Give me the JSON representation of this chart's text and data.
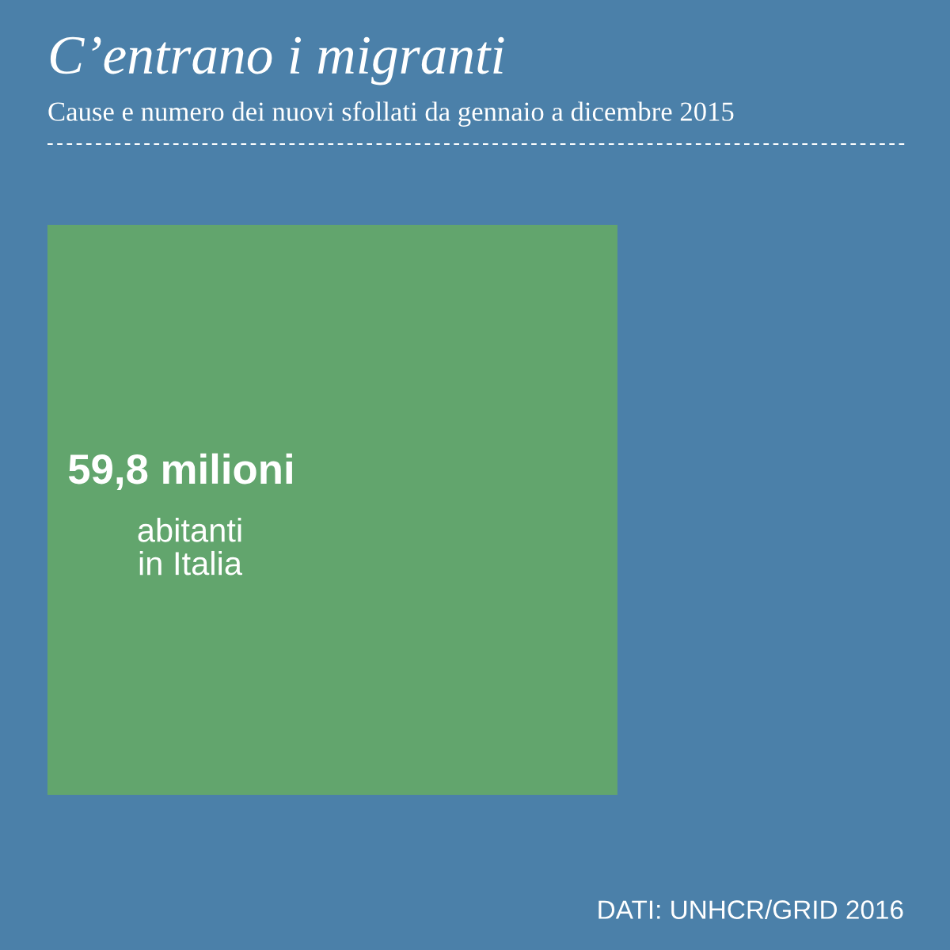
{
  "chart_data": {
    "type": "other",
    "title": "C’entrano i migranti",
    "subtitle": "Cause e numero dei nuovi sfollati da gennaio a dicembre 2015",
    "categories": [
      "abitanti\nin Italia"
    ],
    "values": [
      59.8
    ],
    "value_labels": [
      "59,8 milioni"
    ],
    "colors": [
      "#62a56d"
    ],
    "annotations": [
      "DATI: UNHCR/GRID 2016"
    ]
  }
}
